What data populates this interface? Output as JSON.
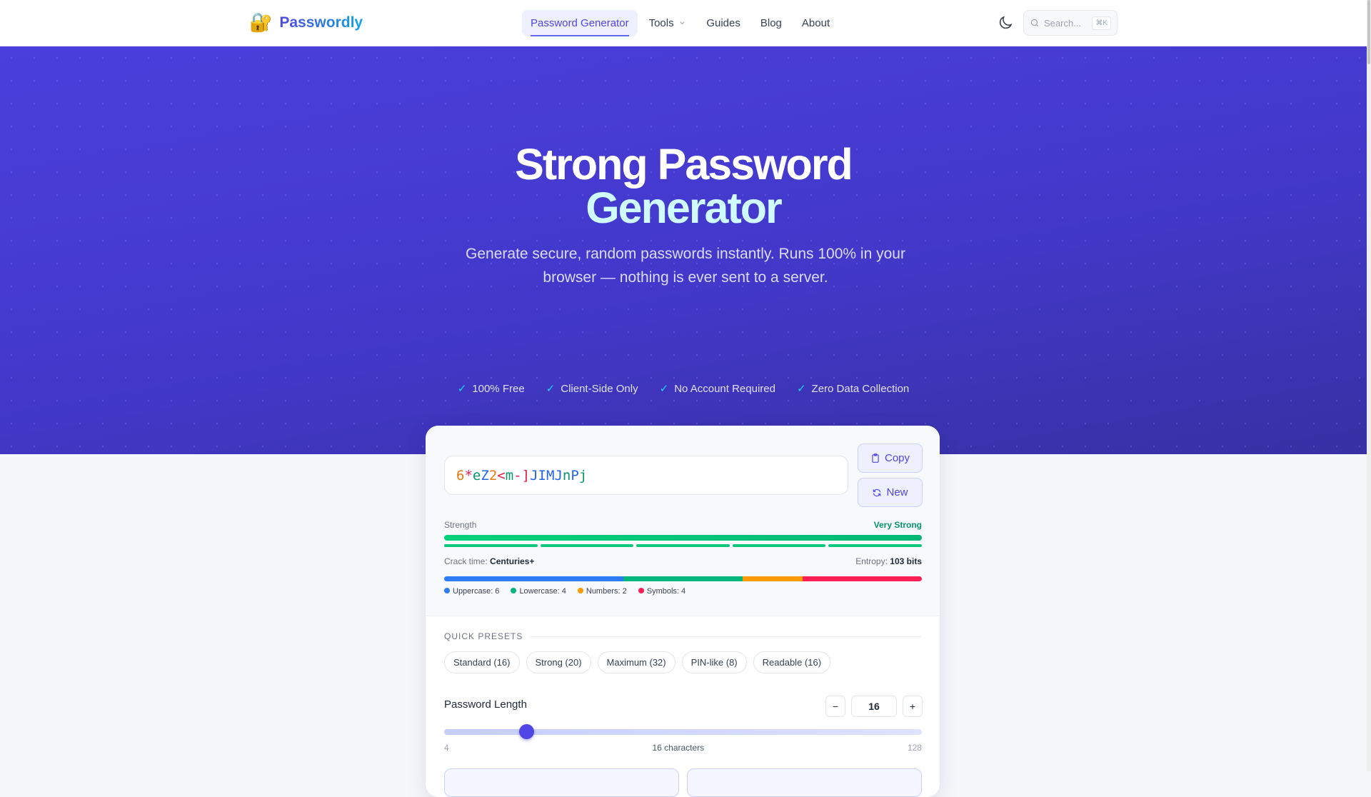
{
  "nav": {
    "logo_icon": "locked-with-key",
    "brand": "Passwordly",
    "items": [
      {
        "label": "Password Generator",
        "active": true
      },
      {
        "label": "Tools",
        "dropdown": true
      },
      {
        "label": "Guides"
      },
      {
        "label": "Blog"
      },
      {
        "label": "About"
      }
    ],
    "search_placeholder": "Search...",
    "search_shortcut": "⌘K"
  },
  "hero": {
    "title_line1": "Strong Password",
    "title_line2": "Generator",
    "subtitle": "Generate secure, random passwords instantly. Runs 100% in your browser — nothing is ever sent to a server.",
    "features": [
      "100% Free",
      "Client-Side Only",
      "No Account Required",
      "Zero Data Collection"
    ]
  },
  "generator": {
    "password_chars": [
      {
        "c": "6",
        "t": "number"
      },
      {
        "c": "*",
        "t": "symbol"
      },
      {
        "c": "e",
        "t": "lower"
      },
      {
        "c": "Z",
        "t": "upper"
      },
      {
        "c": "2",
        "t": "number"
      },
      {
        "c": "<",
        "t": "symbol"
      },
      {
        "c": "m",
        "t": "lower"
      },
      {
        "c": "-",
        "t": "symbol"
      },
      {
        "c": "]",
        "t": "symbol"
      },
      {
        "c": "J",
        "t": "upper"
      },
      {
        "c": "I",
        "t": "upper"
      },
      {
        "c": "M",
        "t": "upper"
      },
      {
        "c": "J",
        "t": "upper"
      },
      {
        "c": "n",
        "t": "lower"
      },
      {
        "c": "P",
        "t": "upper"
      },
      {
        "c": "j",
        "t": "lower"
      }
    ],
    "copy_label": "Copy",
    "new_label": "New",
    "strength_label": "Strength",
    "strength_value": "Very Strong",
    "strength_segments_filled": 5,
    "strength_segments_total": 5,
    "crack_label": "Crack time:",
    "crack_value": "Centuries+",
    "entropy_label": "Entropy:",
    "entropy_value": "103 bits",
    "composition": [
      {
        "label": "Uppercase: 6",
        "count": 6,
        "color": "#2f7bf5"
      },
      {
        "label": "Lowercase: 4",
        "count": 4,
        "color": "#00b67a"
      },
      {
        "label": "Numbers: 2",
        "count": 2,
        "color": "#ff9a00"
      },
      {
        "label": "Symbols: 4",
        "count": 4,
        "color": "#ff1f57"
      }
    ],
    "colors": {
      "upper": "#2563eb",
      "lower": "#059669",
      "number": "#ea7a10",
      "symbol": "#e11d48",
      "accent": "#4f46e5",
      "strong": "#059669"
    }
  },
  "presets": {
    "heading": "QUICK PRESETS",
    "items": [
      "Standard (16)",
      "Strong (20)",
      "Maximum (32)",
      "PIN-like (8)",
      "Readable (16)"
    ]
  },
  "length": {
    "label": "Password Length",
    "value": "16",
    "minus": "−",
    "plus": "+",
    "min": 4,
    "max": 128,
    "current": 16,
    "min_label": "4",
    "max_label": "128",
    "caption": "16 characters"
  }
}
